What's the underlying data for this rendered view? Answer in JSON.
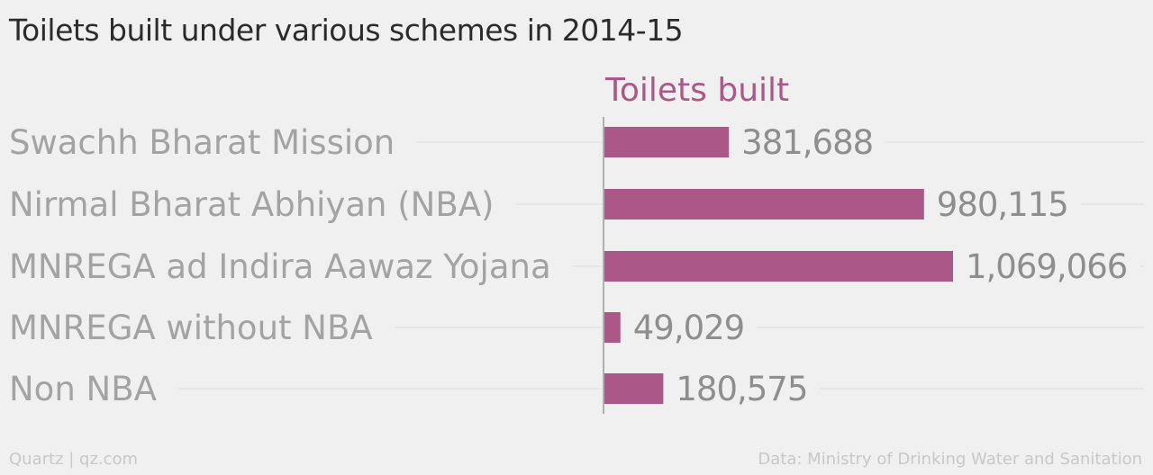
{
  "chart_data": {
    "type": "bar",
    "orientation": "horizontal",
    "title": "Toilets built under various schemes in 2014-15",
    "series": [
      {
        "name": "Toilets built",
        "color": "#ab5787",
        "labels": [
          "381,688",
          "980,115",
          "1,069,066",
          "49,029",
          "180,575"
        ],
        "values": [
          381688,
          980115,
          1069066,
          49029,
          180575
        ]
      }
    ],
    "categories": [
      "Swachh Bharat Mission",
      "Nirmal Bharat Abhiyan (NBA)",
      "MNREGA ad Indira Aawaz Yojana",
      "MNREGA without NBA",
      "Non NBA"
    ],
    "xlim": [
      0,
      1200000
    ],
    "grid": true
  },
  "footer": {
    "left": "Quartz | qz.com",
    "right": "Data: Ministry of Drinking Water and Sanitation"
  },
  "colors": {
    "bar": "#ab5787",
    "series_label": "#ab5787",
    "category_text": "#a3a3a3",
    "value_text": "#8e8e8e",
    "gridline": "#e2e2e2",
    "axis": "#9a9a9a",
    "background": "#f0f0f0"
  }
}
